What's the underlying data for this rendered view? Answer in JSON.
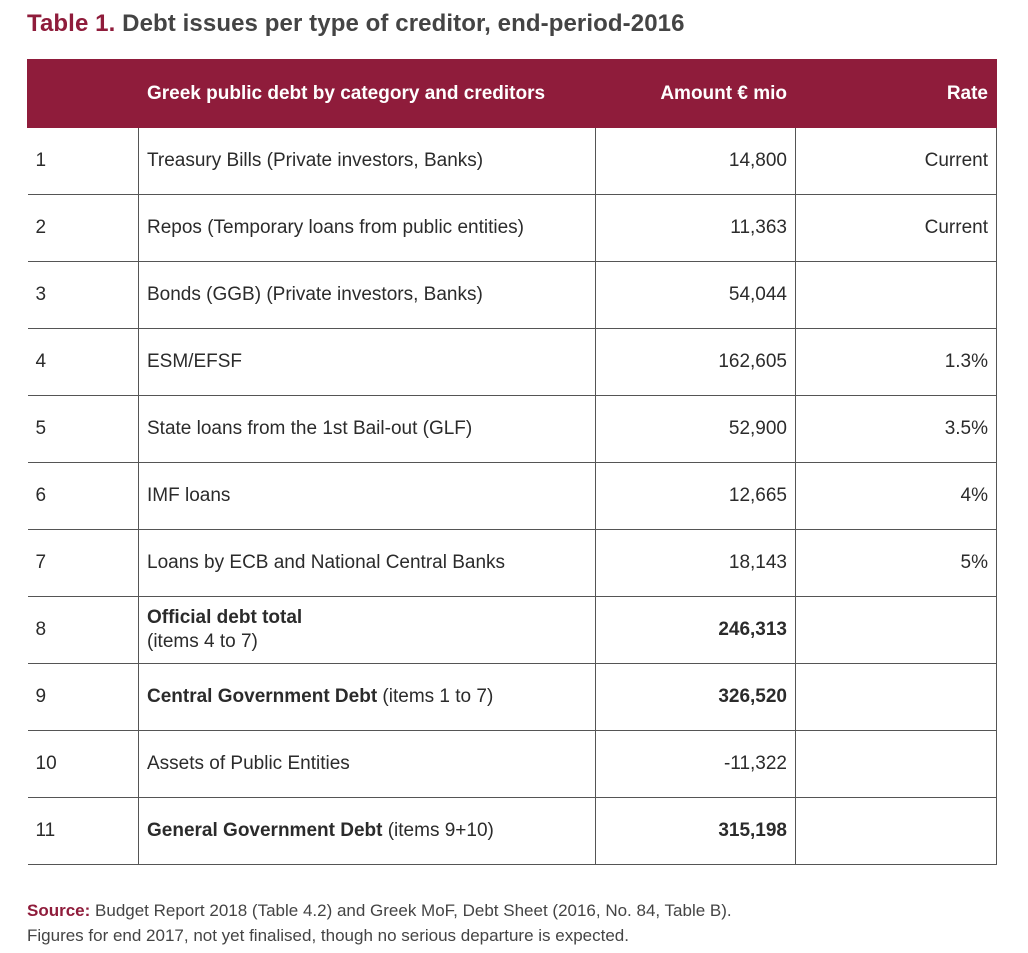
{
  "title": {
    "label": "Table 1.",
    "text": " Debt issues per type of creditor, end-period-2016"
  },
  "table": {
    "headers": {
      "num": "",
      "category": "Greek public debt by category and creditors",
      "amount": "Amount € mio",
      "rate": "Rate"
    },
    "rows": [
      {
        "num": "1",
        "bold": "",
        "rest": "Treasury Bills (Private investors, Banks)",
        "sub": "",
        "amount": "14,800",
        "amount_bold": false,
        "rate": "Current"
      },
      {
        "num": "2",
        "bold": "",
        "rest": "Repos (Temporary loans from public entities)",
        "sub": "",
        "amount": "11,363",
        "amount_bold": false,
        "rate": "Current"
      },
      {
        "num": "3",
        "bold": "",
        "rest": "Bonds (GGB) (Private investors, Banks)",
        "sub": "",
        "amount": "54,044",
        "amount_bold": false,
        "rate": ""
      },
      {
        "num": "4",
        "bold": "",
        "rest": "ESM/EFSF",
        "sub": "",
        "amount": "162,605",
        "amount_bold": false,
        "rate": "1.3%"
      },
      {
        "num": "5",
        "bold": "",
        "rest": "State loans from the 1st Bail-out (GLF)",
        "sub": "",
        "amount": "52,900",
        "amount_bold": false,
        "rate": "3.5%"
      },
      {
        "num": "6",
        "bold": "",
        "rest": "IMF loans",
        "sub": "",
        "amount": "12,665",
        "amount_bold": false,
        "rate": "4%"
      },
      {
        "num": "7",
        "bold": "",
        "rest": "Loans by ECB and National Central Banks",
        "sub": "",
        "amount": "18,143",
        "amount_bold": false,
        "rate": "5%"
      },
      {
        "num": "8",
        "bold": "Official debt total",
        "rest": "",
        "sub": "(items 4 to 7)",
        "amount": "246,313",
        "amount_bold": true,
        "rate": ""
      },
      {
        "num": "9",
        "bold": "Central Government Debt",
        "rest": " (items 1 to 7)",
        "sub": "",
        "amount": "326,520",
        "amount_bold": true,
        "rate": ""
      },
      {
        "num": "10",
        "bold": "",
        "rest": "Assets of Public Entities",
        "sub": "",
        "amount": "-11,322",
        "amount_bold": false,
        "rate": ""
      },
      {
        "num": "11",
        "bold": "General Government Debt",
        "rest": " (items 9+10)",
        "sub": "",
        "amount": "315,198",
        "amount_bold": true,
        "rate": ""
      }
    ]
  },
  "source": {
    "label": "Source:",
    "line1": " Budget Report 2018 (Table 4.2) and Greek MoF, Debt Sheet (2016, No. 84, Table B).",
    "line2": "Figures for end 2017, not yet finalised, though no serious departure is expected."
  },
  "colors": {
    "accent": "#8f1c3b",
    "text": "#2b2b2b",
    "border": "#555555"
  }
}
